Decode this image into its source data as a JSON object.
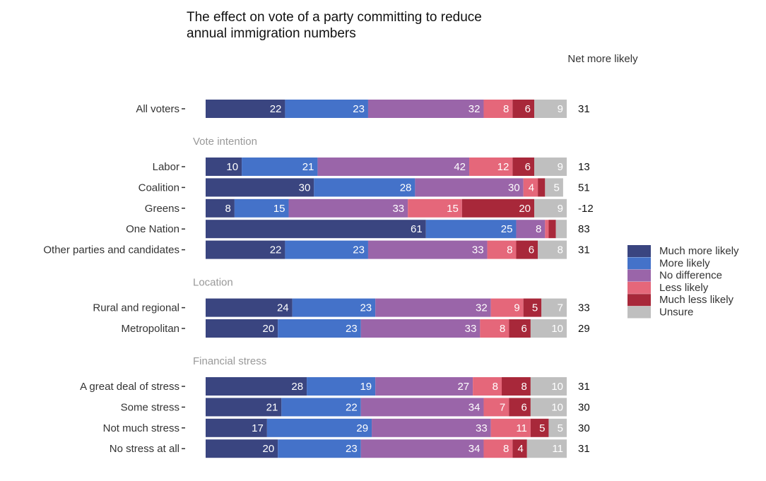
{
  "chart_data": {
    "type": "stacked-bar",
    "title": [
      "The effect on vote of a party committing to reduce",
      "annual immigration numbers"
    ],
    "categories": [
      "All voters",
      "Labor",
      "Coalition",
      "Greens",
      "One Nation",
      "Other parties and candidates",
      "Rural and regional",
      "Metropolitan",
      "A great deal of stress",
      "Some stress",
      "Not much stress",
      "No stress at all"
    ],
    "groups": [
      {
        "title": "Vote intention",
        "first_row": 1
      },
      {
        "title": "Location",
        "first_row": 6
      },
      {
        "title": "Financial stress",
        "first_row": 8
      }
    ],
    "xlim": [
      0,
      100
    ],
    "series": [
      {
        "name": "Much more likely",
        "color": "#3a4580",
        "values": [
          22,
          10,
          30,
          8,
          61,
          22,
          24,
          20,
          28,
          21,
          17,
          20
        ]
      },
      {
        "name": "More likely",
        "color": "#4472c9",
        "values": [
          23,
          21,
          28,
          15,
          25,
          23,
          23,
          23,
          19,
          22,
          29,
          23
        ]
      },
      {
        "name": "No difference",
        "color": "#9a65a9",
        "values": [
          32,
          42,
          30,
          33,
          8,
          33,
          32,
          33,
          27,
          34,
          33,
          34
        ]
      },
      {
        "name": "Less likely",
        "color": "#e5677a",
        "values": [
          8,
          12,
          4,
          15,
          1,
          8,
          9,
          8,
          8,
          7,
          11,
          8
        ]
      },
      {
        "name": "Much less likely",
        "color": "#a8283a",
        "values": [
          6,
          6,
          2,
          20,
          2,
          6,
          5,
          6,
          8,
          6,
          5,
          4
        ]
      },
      {
        "name": "Unsure",
        "color": "#bfbfbf",
        "values": [
          9,
          9,
          5,
          9,
          3,
          8,
          7,
          10,
          10,
          10,
          5,
          11
        ]
      }
    ],
    "net": {
      "title": "Net more likely",
      "values": [
        31,
        13,
        51,
        -12,
        83,
        31,
        33,
        29,
        31,
        30,
        30,
        31
      ]
    }
  }
}
